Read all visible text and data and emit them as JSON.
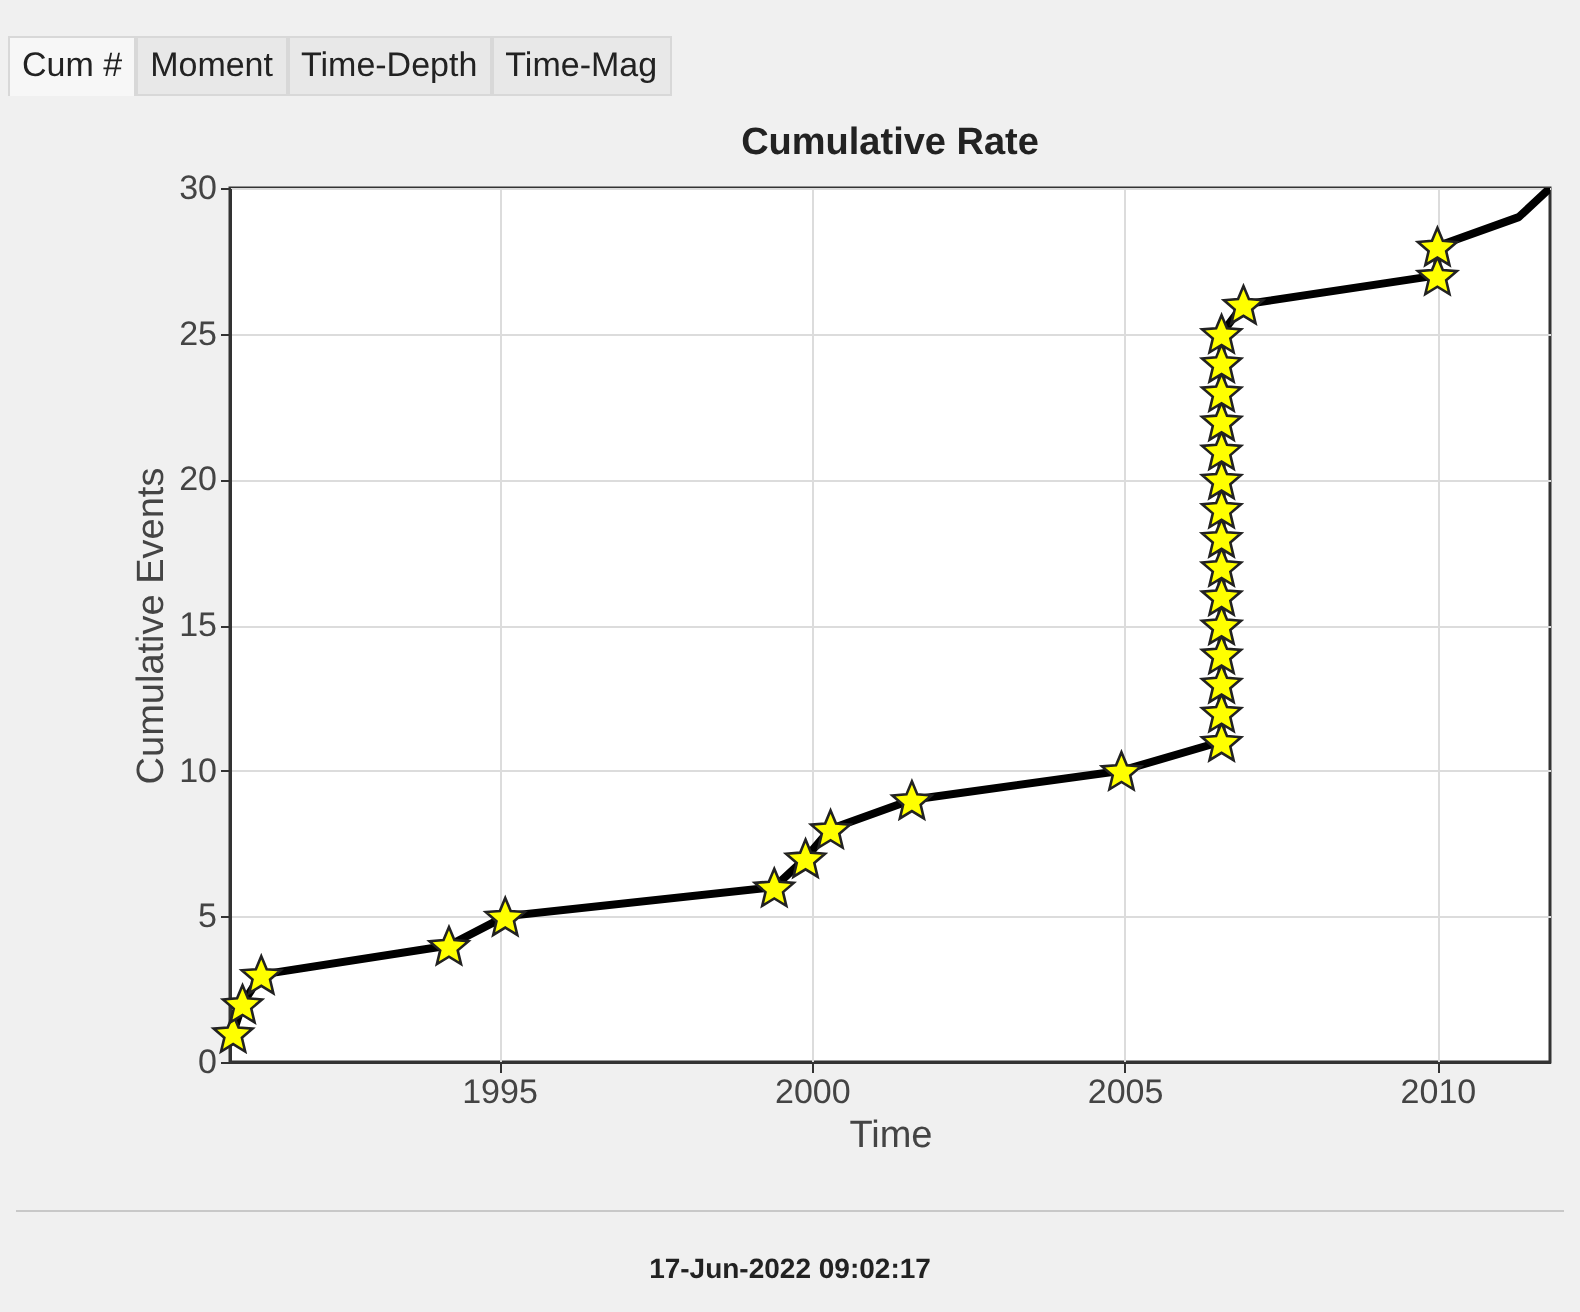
{
  "chart_data": {
    "type": "line",
    "title": "Cumulative Rate",
    "xlabel": "Time",
    "ylabel": "Cumulative Events",
    "annotations": [
      "Cum #",
      "Moment",
      "Time-Depth",
      "Time-Mag",
      "17-Jun-2022 09:02:17"
    ],
    "xlim": [
      1990.7,
      2011.8
    ],
    "xticks": [
      1995,
      2000,
      2005,
      2010
    ],
    "ylim": [
      0,
      30
    ],
    "yticks": [
      0,
      5,
      10,
      15,
      20,
      25,
      30
    ],
    "grid": true,
    "series": [
      {
        "color": "#000000",
        "line_style": "solid",
        "x": [
          1990.75,
          1990.9,
          1991.2,
          1994.2,
          1995.1,
          1999.4,
          1999.9,
          2000.3,
          2001.6,
          2004.95,
          2006.55,
          2006.55,
          2006.55,
          2006.55,
          2006.55,
          2006.55,
          2006.55,
          2006.55,
          2006.55,
          2006.55,
          2006.55,
          2006.55,
          2006.55,
          2006.55,
          2006.55,
          2006.9,
          2010.0,
          2010.0,
          2011.3,
          2011.8
        ],
        "values": [
          1,
          2,
          3,
          4,
          5,
          6,
          7,
          8,
          9,
          10,
          11,
          12,
          13,
          14,
          15,
          16,
          17,
          18,
          19,
          20,
          21,
          22,
          23,
          24,
          25,
          26,
          27,
          28,
          29,
          30
        ]
      },
      {
        "type": "scatter",
        "color": "#ffff00",
        "marker": "star",
        "x": [
          1990.75,
          1990.9,
          1991.2,
          1994.2,
          1995.1,
          1999.4,
          1999.9,
          2000.3,
          2001.6,
          2004.95,
          2006.55,
          2006.55,
          2006.55,
          2006.55,
          2006.55,
          2006.55,
          2006.55,
          2006.55,
          2006.55,
          2006.55,
          2006.55,
          2006.55,
          2006.55,
          2006.55,
          2006.55,
          2006.9,
          2010.0,
          2010.0
        ],
        "values": [
          1,
          2,
          3,
          4,
          5,
          6,
          7,
          8,
          9,
          10,
          11,
          12,
          13,
          14,
          15,
          16,
          17,
          18,
          19,
          20,
          21,
          22,
          23,
          24,
          25,
          26,
          27,
          28
        ]
      }
    ]
  }
}
